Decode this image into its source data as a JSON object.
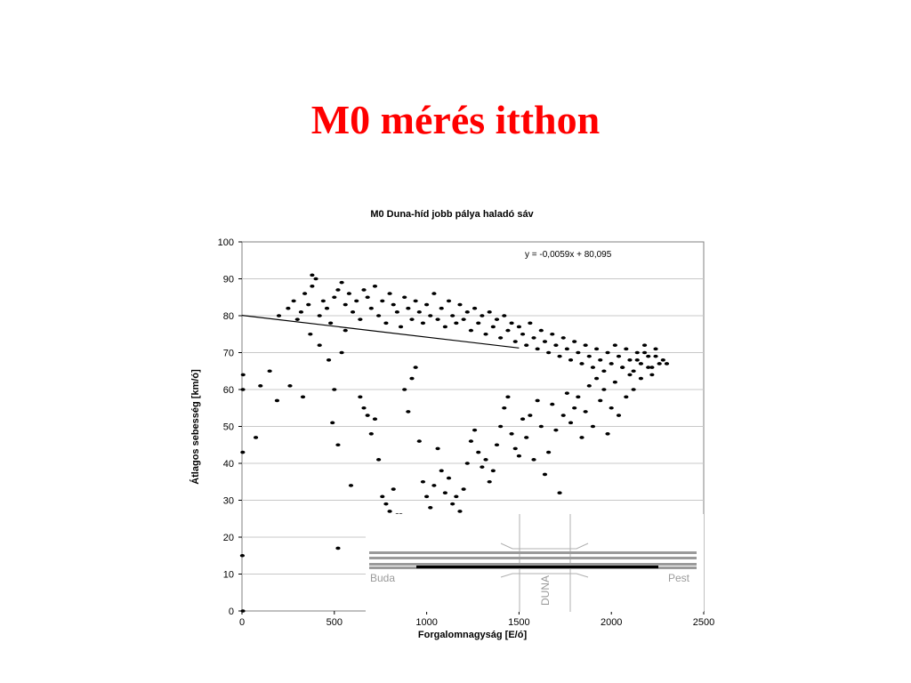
{
  "slide": {
    "title": "M0 mérés itthon",
    "title_color": "#ff0000"
  },
  "chart_data": {
    "type": "scatter",
    "title": "M0 Duna-híd jobb pálya haladó sáv",
    "xlabel": "Forgalomnagyság [E/ó]",
    "ylabel": "Átlagos sebesség [km/ó]",
    "xlim": [
      0,
      2500
    ],
    "ylim": [
      0,
      100
    ],
    "x_ticks": [
      0,
      500,
      1000,
      1500,
      2000,
      2500
    ],
    "y_ticks": [
      0,
      10,
      20,
      30,
      40,
      50,
      60,
      70,
      80,
      90,
      100
    ],
    "grid": "horizontal",
    "point_color": "#000000",
    "trendline": {
      "equation": "y = -0,0059x + 80,095",
      "slope": -0.0059,
      "intercept": 80.095,
      "x_range": [
        0,
        1500
      ]
    },
    "series": [
      {
        "points": [
          [
            2,
            15
          ],
          [
            4,
            43
          ],
          [
            5,
            60
          ],
          [
            6,
            64
          ],
          [
            5,
            0
          ],
          [
            75,
            47
          ],
          [
            100,
            61
          ],
          [
            150,
            65
          ],
          [
            190,
            57
          ],
          [
            260,
            61
          ],
          [
            330,
            58
          ],
          [
            370,
            75
          ],
          [
            420,
            72
          ],
          [
            470,
            68
          ],
          [
            490,
            51
          ],
          [
            500,
            60
          ],
          [
            520,
            45
          ],
          [
            540,
            70
          ],
          [
            560,
            76
          ],
          [
            590,
            34
          ],
          [
            640,
            58
          ],
          [
            660,
            55
          ],
          [
            680,
            53
          ],
          [
            700,
            48
          ],
          [
            720,
            52
          ],
          [
            740,
            41
          ],
          [
            760,
            31
          ],
          [
            780,
            29
          ],
          [
            800,
            27
          ],
          [
            820,
            33
          ],
          [
            840,
            26
          ],
          [
            860,
            26
          ],
          [
            880,
            60
          ],
          [
            900,
            54
          ],
          [
            920,
            63
          ],
          [
            940,
            66
          ],
          [
            960,
            46
          ],
          [
            980,
            35
          ],
          [
            1000,
            31
          ],
          [
            1020,
            28
          ],
          [
            1040,
            34
          ],
          [
            1060,
            44
          ],
          [
            1080,
            38
          ],
          [
            1100,
            32
          ],
          [
            1120,
            36
          ],
          [
            1140,
            29
          ],
          [
            1160,
            31
          ],
          [
            1180,
            27
          ],
          [
            1200,
            33
          ],
          [
            1220,
            40
          ],
          [
            1240,
            46
          ],
          [
            1260,
            49
          ],
          [
            1280,
            43
          ],
          [
            1300,
            39
          ],
          [
            1320,
            41
          ],
          [
            1340,
            35
          ],
          [
            1360,
            38
          ],
          [
            1380,
            45
          ],
          [
            1400,
            50
          ],
          [
            1420,
            55
          ],
          [
            1440,
            58
          ],
          [
            1460,
            48
          ],
          [
            1480,
            44
          ],
          [
            1500,
            42
          ],
          [
            1520,
            52
          ],
          [
            1540,
            47
          ],
          [
            1560,
            53
          ],
          [
            1580,
            41
          ],
          [
            1600,
            57
          ],
          [
            1620,
            50
          ],
          [
            1640,
            37
          ],
          [
            1660,
            43
          ],
          [
            1680,
            56
          ],
          [
            1700,
            49
          ],
          [
            1720,
            32
          ],
          [
            1740,
            53
          ],
          [
            1760,
            59
          ],
          [
            1780,
            51
          ],
          [
            1800,
            55
          ],
          [
            1820,
            58
          ],
          [
            1840,
            47
          ],
          [
            1860,
            54
          ],
          [
            1880,
            61
          ],
          [
            1900,
            50
          ],
          [
            1920,
            63
          ],
          [
            1940,
            57
          ],
          [
            1960,
            60
          ],
          [
            1980,
            48
          ],
          [
            2000,
            55
          ],
          [
            2020,
            62
          ],
          [
            2040,
            53
          ],
          [
            2060,
            66
          ],
          [
            2080,
            58
          ],
          [
            2100,
            64
          ],
          [
            2120,
            60
          ],
          [
            2140,
            68
          ],
          [
            2160,
            63
          ],
          [
            2180,
            70
          ],
          [
            2200,
            66
          ],
          [
            2220,
            64
          ],
          [
            2240,
            69
          ],
          [
            2260,
            67
          ],
          [
            2280,
            68
          ],
          [
            2300,
            67
          ],
          [
            200,
            80
          ],
          [
            250,
            82
          ],
          [
            280,
            84
          ],
          [
            300,
            79
          ],
          [
            320,
            81
          ],
          [
            340,
            86
          ],
          [
            360,
            83
          ],
          [
            380,
            88
          ],
          [
            400,
            90
          ],
          [
            420,
            80
          ],
          [
            440,
            84
          ],
          [
            460,
            82
          ],
          [
            480,
            78
          ],
          [
            500,
            85
          ],
          [
            520,
            87
          ],
          [
            540,
            89
          ],
          [
            560,
            83
          ],
          [
            580,
            86
          ],
          [
            600,
            81
          ],
          [
            620,
            84
          ],
          [
            640,
            79
          ],
          [
            660,
            87
          ],
          [
            680,
            85
          ],
          [
            700,
            82
          ],
          [
            720,
            88
          ],
          [
            740,
            80
          ],
          [
            760,
            84
          ],
          [
            780,
            78
          ],
          [
            800,
            86
          ],
          [
            820,
            83
          ],
          [
            840,
            81
          ],
          [
            860,
            77
          ],
          [
            880,
            85
          ],
          [
            900,
            82
          ],
          [
            920,
            79
          ],
          [
            940,
            84
          ],
          [
            960,
            81
          ],
          [
            980,
            78
          ],
          [
            1000,
            83
          ],
          [
            1020,
            80
          ],
          [
            1040,
            86
          ],
          [
            1060,
            79
          ],
          [
            1080,
            82
          ],
          [
            1100,
            77
          ],
          [
            1120,
            84
          ],
          [
            1140,
            80
          ],
          [
            1160,
            78
          ],
          [
            1180,
            83
          ],
          [
            1200,
            79
          ],
          [
            1220,
            81
          ],
          [
            1240,
            76
          ],
          [
            1260,
            82
          ],
          [
            1280,
            78
          ],
          [
            1300,
            80
          ],
          [
            1320,
            75
          ],
          [
            1340,
            81
          ],
          [
            1360,
            77
          ],
          [
            1380,
            79
          ],
          [
            1400,
            74
          ],
          [
            1420,
            80
          ],
          [
            1440,
            76
          ],
          [
            1460,
            78
          ],
          [
            1480,
            73
          ],
          [
            1500,
            77
          ],
          [
            1520,
            75
          ],
          [
            1540,
            72
          ],
          [
            1560,
            78
          ],
          [
            1580,
            74
          ],
          [
            1600,
            71
          ],
          [
            1620,
            76
          ],
          [
            1640,
            73
          ],
          [
            1660,
            70
          ],
          [
            1680,
            75
          ],
          [
            1700,
            72
          ],
          [
            1720,
            69
          ],
          [
            1740,
            74
          ],
          [
            1760,
            71
          ],
          [
            1780,
            68
          ],
          [
            1800,
            73
          ],
          [
            1820,
            70
          ],
          [
            1840,
            67
          ],
          [
            1860,
            72
          ],
          [
            1880,
            69
          ],
          [
            1900,
            66
          ],
          [
            1920,
            71
          ],
          [
            1940,
            68
          ],
          [
            1960,
            65
          ],
          [
            1980,
            70
          ],
          [
            2000,
            67
          ],
          [
            2020,
            72
          ],
          [
            2040,
            69
          ],
          [
            2060,
            66
          ],
          [
            2080,
            71
          ],
          [
            2100,
            68
          ],
          [
            2120,
            65
          ],
          [
            2140,
            70
          ],
          [
            2160,
            67
          ],
          [
            2180,
            72
          ],
          [
            2200,
            69
          ],
          [
            2220,
            66
          ],
          [
            2240,
            71
          ],
          [
            520,
            17
          ],
          [
            380,
            91
          ]
        ]
      }
    ]
  },
  "inset": {
    "left_label": "Buda",
    "right_label": "Pest",
    "river_label": "DUNA"
  }
}
